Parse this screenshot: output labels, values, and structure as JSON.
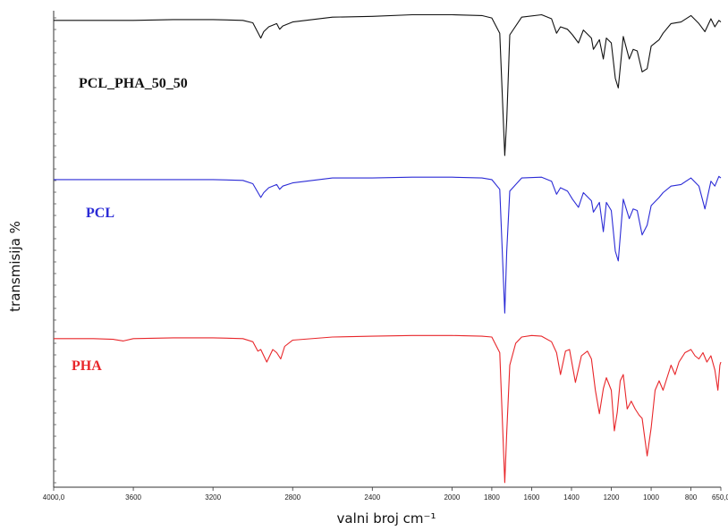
{
  "chart_data": {
    "type": "line",
    "xlabel": "valni broj cm⁻¹",
    "ylabel": "transmisija %",
    "xlim": [
      4000,
      650
    ],
    "x_reversed": true,
    "x_ticks": [
      "4000,0",
      "3600",
      "3200",
      "2800",
      "2400",
      "2000",
      "1800",
      "1600",
      "1400",
      "1200",
      "1000",
      "800",
      "650,0"
    ],
    "x_tick_values": [
      4000,
      3600,
      3200,
      2800,
      2400,
      2000,
      1800,
      1600,
      1400,
      1200,
      1000,
      800,
      650
    ],
    "y_ticks_labeled": false,
    "grid": false,
    "legend": "inline labels",
    "series": [
      {
        "name": "PCL_PHA_50_50",
        "color": "#111111",
        "points": [
          [
            4000,
            0.94
          ],
          [
            3800,
            0.94
          ],
          [
            3600,
            0.94
          ],
          [
            3400,
            0.945
          ],
          [
            3200,
            0.945
          ],
          [
            3050,
            0.94
          ],
          [
            3000,
            0.925
          ],
          [
            2960,
            0.83
          ],
          [
            2945,
            0.87
          ],
          [
            2920,
            0.9
          ],
          [
            2880,
            0.92
          ],
          [
            2865,
            0.885
          ],
          [
            2850,
            0.905
          ],
          [
            2800,
            0.93
          ],
          [
            2600,
            0.96
          ],
          [
            2400,
            0.965
          ],
          [
            2200,
            0.975
          ],
          [
            2000,
            0.975
          ],
          [
            1850,
            0.97
          ],
          [
            1800,
            0.955
          ],
          [
            1760,
            0.86
          ],
          [
            1735,
            0.1
          ],
          [
            1725,
            0.32
          ],
          [
            1710,
            0.85
          ],
          [
            1650,
            0.96
          ],
          [
            1550,
            0.975
          ],
          [
            1500,
            0.95
          ],
          [
            1475,
            0.86
          ],
          [
            1455,
            0.9
          ],
          [
            1420,
            0.885
          ],
          [
            1395,
            0.85
          ],
          [
            1365,
            0.8
          ],
          [
            1340,
            0.88
          ],
          [
            1300,
            0.83
          ],
          [
            1290,
            0.76
          ],
          [
            1260,
            0.82
          ],
          [
            1240,
            0.7
          ],
          [
            1225,
            0.83
          ],
          [
            1200,
            0.8
          ],
          [
            1180,
            0.58
          ],
          [
            1165,
            0.52
          ],
          [
            1140,
            0.84
          ],
          [
            1110,
            0.7
          ],
          [
            1090,
            0.76
          ],
          [
            1070,
            0.75
          ],
          [
            1045,
            0.62
          ],
          [
            1020,
            0.64
          ],
          [
            1000,
            0.78
          ],
          [
            960,
            0.82
          ],
          [
            940,
            0.86
          ],
          [
            900,
            0.92
          ],
          [
            850,
            0.93
          ],
          [
            800,
            0.97
          ],
          [
            760,
            0.92
          ],
          [
            730,
            0.87
          ],
          [
            700,
            0.95
          ],
          [
            680,
            0.9
          ],
          [
            660,
            0.94
          ],
          [
            650,
            0.93
          ]
        ]
      },
      {
        "name": "PCL",
        "color": "#2b2bd6",
        "points": [
          [
            4000,
            0.94
          ],
          [
            3800,
            0.94
          ],
          [
            3600,
            0.94
          ],
          [
            3400,
            0.94
          ],
          [
            3200,
            0.94
          ],
          [
            3050,
            0.935
          ],
          [
            3000,
            0.915
          ],
          [
            2960,
            0.83
          ],
          [
            2945,
            0.86
          ],
          [
            2920,
            0.89
          ],
          [
            2880,
            0.91
          ],
          [
            2865,
            0.88
          ],
          [
            2850,
            0.9
          ],
          [
            2800,
            0.92
          ],
          [
            2600,
            0.95
          ],
          [
            2400,
            0.95
          ],
          [
            2200,
            0.955
          ],
          [
            2000,
            0.955
          ],
          [
            1850,
            0.95
          ],
          [
            1800,
            0.94
          ],
          [
            1760,
            0.88
          ],
          [
            1735,
            0.12
          ],
          [
            1725,
            0.5
          ],
          [
            1710,
            0.87
          ],
          [
            1650,
            0.95
          ],
          [
            1550,
            0.955
          ],
          [
            1500,
            0.93
          ],
          [
            1475,
            0.85
          ],
          [
            1455,
            0.89
          ],
          [
            1420,
            0.87
          ],
          [
            1395,
            0.82
          ],
          [
            1365,
            0.77
          ],
          [
            1340,
            0.86
          ],
          [
            1300,
            0.81
          ],
          [
            1290,
            0.74
          ],
          [
            1260,
            0.8
          ],
          [
            1240,
            0.62
          ],
          [
            1225,
            0.8
          ],
          [
            1200,
            0.75
          ],
          [
            1180,
            0.5
          ],
          [
            1165,
            0.44
          ],
          [
            1140,
            0.82
          ],
          [
            1110,
            0.7
          ],
          [
            1090,
            0.76
          ],
          [
            1070,
            0.75
          ],
          [
            1045,
            0.6
          ],
          [
            1020,
            0.66
          ],
          [
            1000,
            0.78
          ],
          [
            960,
            0.83
          ],
          [
            940,
            0.86
          ],
          [
            900,
            0.9
          ],
          [
            850,
            0.91
          ],
          [
            800,
            0.95
          ],
          [
            760,
            0.9
          ],
          [
            730,
            0.76
          ],
          [
            700,
            0.93
          ],
          [
            680,
            0.9
          ],
          [
            660,
            0.96
          ],
          [
            650,
            0.95
          ]
        ]
      },
      {
        "name": "PHA",
        "color": "#e8262a",
        "points": [
          [
            4000,
            0.95
          ],
          [
            3800,
            0.95
          ],
          [
            3700,
            0.945
          ],
          [
            3650,
            0.935
          ],
          [
            3600,
            0.95
          ],
          [
            3400,
            0.955
          ],
          [
            3200,
            0.955
          ],
          [
            3050,
            0.95
          ],
          [
            3000,
            0.93
          ],
          [
            2975,
            0.87
          ],
          [
            2960,
            0.88
          ],
          [
            2930,
            0.8
          ],
          [
            2900,
            0.88
          ],
          [
            2880,
            0.86
          ],
          [
            2860,
            0.82
          ],
          [
            2840,
            0.9
          ],
          [
            2800,
            0.94
          ],
          [
            2600,
            0.96
          ],
          [
            2400,
            0.965
          ],
          [
            2200,
            0.97
          ],
          [
            2000,
            0.97
          ],
          [
            1850,
            0.965
          ],
          [
            1800,
            0.96
          ],
          [
            1760,
            0.86
          ],
          [
            1735,
            0.03
          ],
          [
            1725,
            0.35
          ],
          [
            1710,
            0.78
          ],
          [
            1680,
            0.92
          ],
          [
            1650,
            0.96
          ],
          [
            1600,
            0.97
          ],
          [
            1550,
            0.965
          ],
          [
            1500,
            0.93
          ],
          [
            1475,
            0.86
          ],
          [
            1455,
            0.72
          ],
          [
            1430,
            0.87
          ],
          [
            1410,
            0.88
          ],
          [
            1380,
            0.67
          ],
          [
            1350,
            0.84
          ],
          [
            1320,
            0.87
          ],
          [
            1300,
            0.82
          ],
          [
            1280,
            0.62
          ],
          [
            1260,
            0.47
          ],
          [
            1240,
            0.63
          ],
          [
            1225,
            0.7
          ],
          [
            1200,
            0.62
          ],
          [
            1185,
            0.36
          ],
          [
            1170,
            0.48
          ],
          [
            1155,
            0.68
          ],
          [
            1140,
            0.72
          ],
          [
            1120,
            0.5
          ],
          [
            1100,
            0.55
          ],
          [
            1080,
            0.5
          ],
          [
            1060,
            0.46
          ],
          [
            1045,
            0.44
          ],
          [
            1020,
            0.2
          ],
          [
            1000,
            0.38
          ],
          [
            980,
            0.62
          ],
          [
            960,
            0.68
          ],
          [
            940,
            0.62
          ],
          [
            900,
            0.78
          ],
          [
            880,
            0.72
          ],
          [
            860,
            0.8
          ],
          [
            830,
            0.86
          ],
          [
            800,
            0.88
          ],
          [
            780,
            0.84
          ],
          [
            760,
            0.82
          ],
          [
            740,
            0.86
          ],
          [
            720,
            0.8
          ],
          [
            700,
            0.84
          ],
          [
            680,
            0.75
          ],
          [
            665,
            0.62
          ],
          [
            655,
            0.78
          ],
          [
            650,
            0.8
          ]
        ]
      }
    ]
  }
}
